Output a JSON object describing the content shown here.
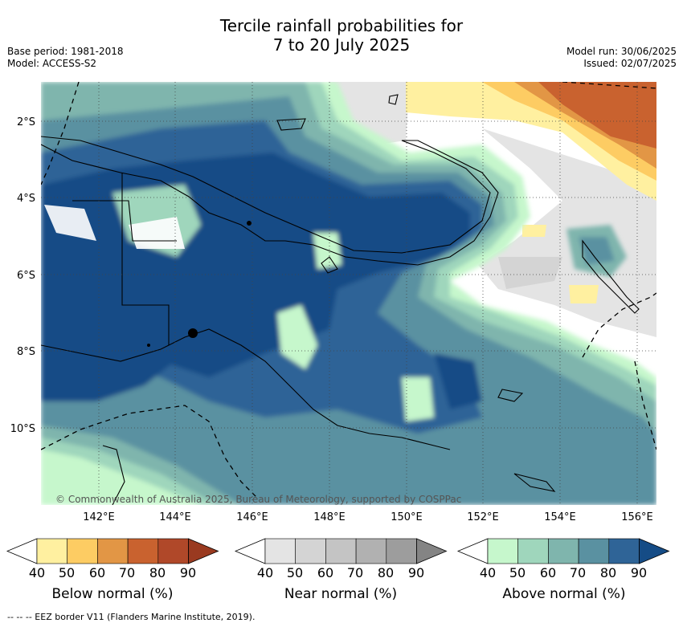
{
  "title_line1": "Tercile rainfall probabilities for",
  "title_line2": "7 to 20 July 2025",
  "meta_left": {
    "base_period": "Base period: 1981-2018",
    "model": "Model: ACCESS-S2"
  },
  "meta_right": {
    "model_run": "Model run: 30/06/2025",
    "issued": "Issued: 02/07/2025"
  },
  "map": {
    "lat_labels": [
      "2°S",
      "4°S",
      "6°S",
      "8°S",
      "10°S"
    ],
    "lon_labels": [
      "142°E",
      "144°E",
      "146°E",
      "148°E",
      "150°E",
      "152°E",
      "154°E",
      "156°E"
    ],
    "copyright": "© Commonwealth of Australia 2025, Bureau of Meteorology, supported by COSPPac",
    "colors": {
      "above": [
        "#c6f7cc",
        "#9fd6bc",
        "#7fb5ad",
        "#5a91a1",
        "#2f6497",
        "#154c86"
      ],
      "near": [
        "#e4e4e4",
        "#d4d4d4",
        "#c4c4c4",
        "#b1b1b1",
        "#9d9d9d",
        "#848484"
      ],
      "below": [
        "#fff0a0",
        "#fdcc63",
        "#e29645",
        "#c9622f",
        "#b04829",
        "#9a3a20"
      ]
    }
  },
  "colorbars": {
    "below": {
      "title": "Below normal (%)",
      "ticks": [
        "40",
        "50",
        "60",
        "70",
        "80",
        "90"
      ]
    },
    "near": {
      "title": "Near normal (%)",
      "ticks": [
        "40",
        "50",
        "60",
        "70",
        "80",
        "90"
      ]
    },
    "above": {
      "title": "Above normal (%)",
      "ticks": [
        "40",
        "50",
        "60",
        "70",
        "80",
        "90"
      ]
    }
  },
  "footer": "--  --  -- EEZ border V11 (Flanders Marine Institute, 2019)."
}
